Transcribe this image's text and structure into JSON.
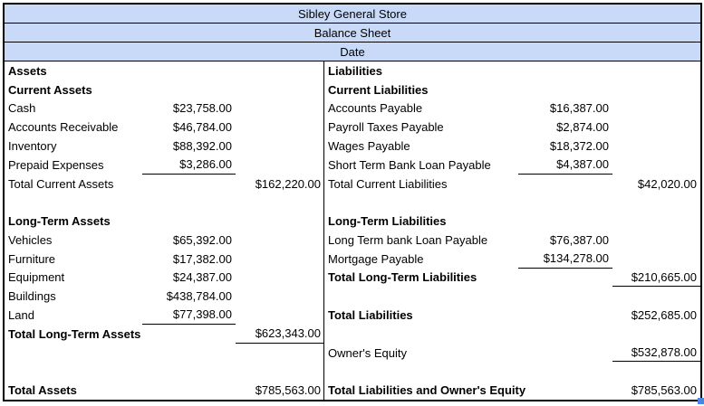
{
  "header": {
    "title": "Sibley General Store",
    "subtitle": "Balance Sheet",
    "date_label": "Date"
  },
  "colors": {
    "header_fill": "#c9daf8",
    "border": "#000000",
    "fill_handle": "#4a86e8"
  },
  "assets": {
    "rows": [
      {
        "label": "Assets"
      },
      {
        "label": "Current Assets"
      },
      {
        "label": "Cash",
        "value": "$23,758.00"
      },
      {
        "label": "Accounts Receivable",
        "value": "$46,784.00"
      },
      {
        "label": "Inventory",
        "value": "$88,392.00"
      },
      {
        "label": "Prepaid Expenses",
        "value": "$3,286.00"
      },
      {
        "label": "Total Current Assets",
        "total": "$162,220.00"
      },
      {
        "label": ""
      },
      {
        "label": "Long-Term Assets"
      },
      {
        "label": "Vehicles",
        "value": "$65,392.00"
      },
      {
        "label": "Furniture",
        "value": "$17,382.00"
      },
      {
        "label": "Equipment",
        "value": "$24,387.00"
      },
      {
        "label": "Buildings",
        "value": "$438,784.00"
      },
      {
        "label": "Land",
        "value": "$77,398.00"
      },
      {
        "label": "Total Long-Term Assets",
        "total": "$623,343.00"
      },
      {
        "label": ""
      },
      {
        "label": ""
      },
      {
        "label": "Total Assets",
        "total": "$785,563.00"
      }
    ]
  },
  "liabilities": {
    "rows": [
      {
        "label": "Liabilities"
      },
      {
        "label": "Current Liabilities"
      },
      {
        "label": "Accounts Payable",
        "value": "$16,387.00"
      },
      {
        "label": "Payroll Taxes Payable",
        "value": "$2,874.00"
      },
      {
        "label": "Wages Payable",
        "value": "$18,372.00"
      },
      {
        "label": "Short Term Bank Loan Payable",
        "value": "$4,387.00"
      },
      {
        "label": "Total Current Liabilities",
        "total": "$42,020.00"
      },
      {
        "label": ""
      },
      {
        "label": "Long-Term Liabilities"
      },
      {
        "label": "Long Term bank Loan Payable",
        "value": "$76,387.00"
      },
      {
        "label": "Mortgage Payable",
        "value": "$134,278.00"
      },
      {
        "label": "Total Long-Term Liabilities",
        "total": "$210,665.00"
      },
      {
        "label": ""
      },
      {
        "label": "Total Liabilities",
        "total": "$252,685.00"
      },
      {
        "label": ""
      },
      {
        "label": "Owner's Equity",
        "total": "$532,878.00"
      },
      {
        "label": ""
      },
      {
        "label": "Total Liabilities and Owner's Equity",
        "total": "$785,563.00"
      }
    ]
  }
}
